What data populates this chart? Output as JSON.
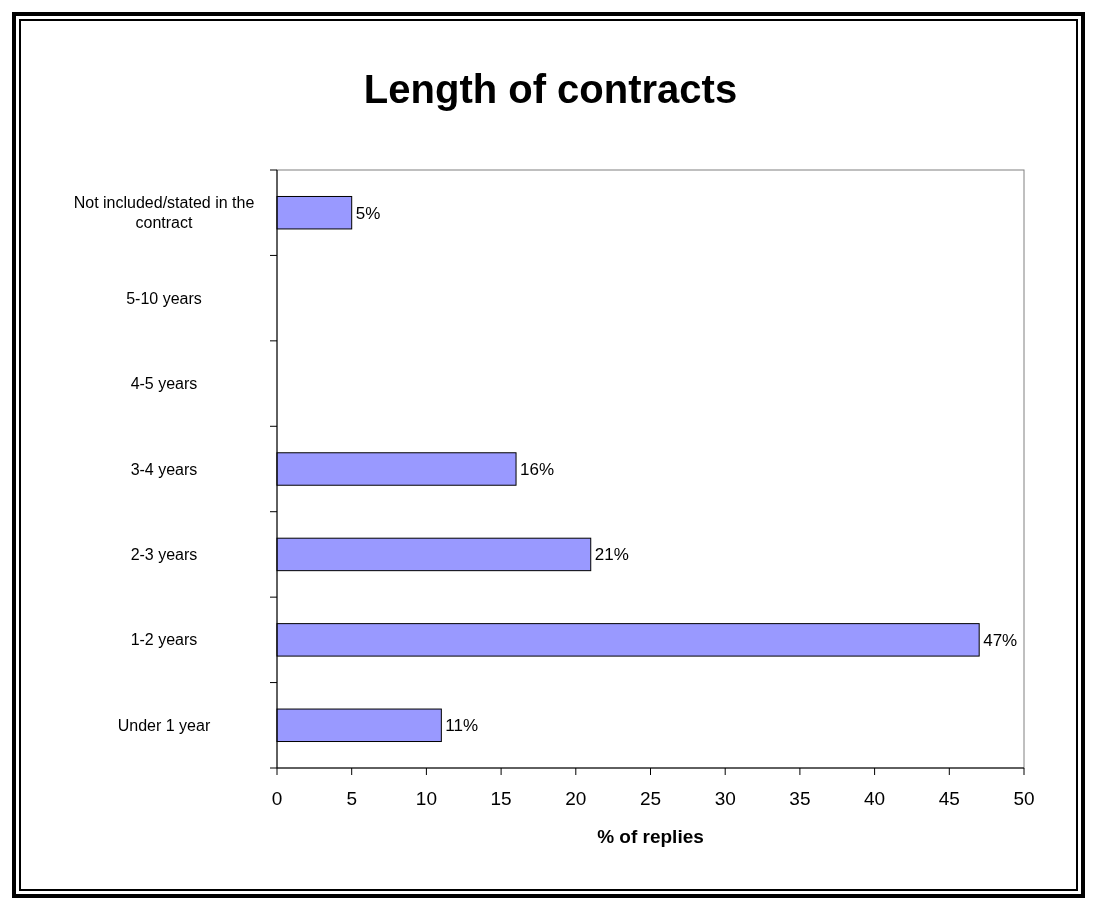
{
  "chart_data": {
    "type": "bar",
    "orientation": "horizontal",
    "title": "Length of contracts",
    "xlabel": "% of replies",
    "categories": [
      "Not included/stated in the contract",
      "5-10 years",
      "4-5 years",
      "3-4 years",
      "2-3 years",
      "1-2 years",
      "Under 1 year"
    ],
    "values": [
      5,
      0,
      0,
      16,
      21,
      47,
      11
    ],
    "value_labels": [
      "5%",
      null,
      null,
      "16%",
      "21%",
      "47%",
      "11%"
    ],
    "color": "#9999ff",
    "xlim": [
      0,
      50
    ],
    "xticks": [
      0,
      5,
      10,
      15,
      20,
      25,
      30,
      35,
      40,
      45,
      50
    ],
    "grid": false
  }
}
